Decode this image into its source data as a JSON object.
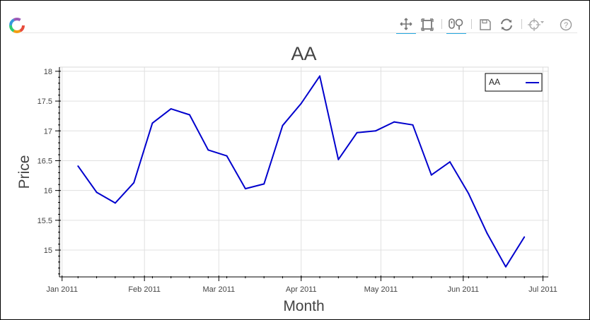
{
  "toolbar": {
    "tools": [
      {
        "name": "pan-tool",
        "icon": "pan-icon",
        "active": true
      },
      {
        "name": "box-zoom-tool",
        "icon": "box-zoom-icon",
        "active": false
      },
      {
        "name": "wheel-zoom-tool",
        "icon": "wheel-zoom-icon",
        "active": true
      },
      {
        "name": "save-tool",
        "icon": "save-icon",
        "active": false
      },
      {
        "name": "reset-tool",
        "icon": "reset-icon",
        "active": false
      },
      {
        "name": "crosshair-tool",
        "icon": "crosshair-icon",
        "active": false
      },
      {
        "name": "help-tool",
        "icon": "help-icon",
        "active": false
      }
    ],
    "active_color": "#26aae1"
  },
  "chart_data": {
    "type": "line",
    "title": "AA",
    "xlabel": "Month",
    "ylabel": "Price",
    "x_ticks": [
      "Jan 2011",
      "Feb 2011",
      "Mar 2011",
      "Apr 2011",
      "May 2011",
      "Jun 2011",
      "Jul 2011"
    ],
    "y_ticks": [
      "15",
      "15.5",
      "16",
      "16.5",
      "17",
      "17.5",
      "18"
    ],
    "xlim": [
      "2010-12-31",
      "2011-07-03"
    ],
    "ylim": [
      14.55,
      18.07
    ],
    "grid": true,
    "legend_position": "top-right",
    "series": [
      {
        "name": "AA",
        "color": "#0000cd",
        "points": [
          {
            "x": "2011-01-07",
            "y": 16.41
          },
          {
            "x": "2011-01-14",
            "y": 15.97
          },
          {
            "x": "2011-01-21",
            "y": 15.79
          },
          {
            "x": "2011-01-28",
            "y": 16.13
          },
          {
            "x": "2011-02-04",
            "y": 17.13
          },
          {
            "x": "2011-02-11",
            "y": 17.37
          },
          {
            "x": "2011-02-18",
            "y": 17.27
          },
          {
            "x": "2011-02-25",
            "y": 16.68
          },
          {
            "x": "2011-03-04",
            "y": 16.58
          },
          {
            "x": "2011-03-11",
            "y": 16.03
          },
          {
            "x": "2011-03-18",
            "y": 16.11
          },
          {
            "x": "2011-03-25",
            "y": 17.09
          },
          {
            "x": "2011-04-01",
            "y": 17.46
          },
          {
            "x": "2011-04-08",
            "y": 17.92
          },
          {
            "x": "2011-04-15",
            "y": 16.52
          },
          {
            "x": "2011-04-22",
            "y": 16.97
          },
          {
            "x": "2011-04-29",
            "y": 17.0
          },
          {
            "x": "2011-05-06",
            "y": 17.15
          },
          {
            "x": "2011-05-13",
            "y": 17.1
          },
          {
            "x": "2011-05-20",
            "y": 16.26
          },
          {
            "x": "2011-05-27",
            "y": 16.48
          },
          {
            "x": "2011-06-03",
            "y": 15.95
          },
          {
            "x": "2011-06-10",
            "y": 15.28
          },
          {
            "x": "2011-06-17",
            "y": 14.72
          },
          {
            "x": "2011-06-24",
            "y": 15.22
          }
        ]
      }
    ]
  }
}
